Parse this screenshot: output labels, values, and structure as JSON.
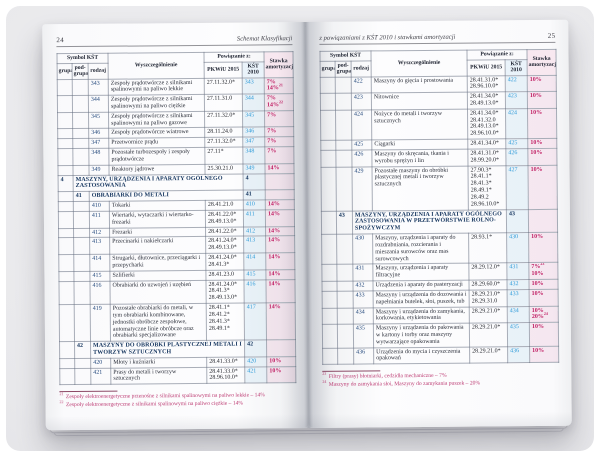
{
  "table_headers": {
    "symbol_kst": "Symbol KŚT",
    "grupa": "grupa",
    "podgrupa": "pod-grupa",
    "rodzaj": "rodzaj",
    "wyszczegolnienie": "Wyszczególnienie",
    "powiazanie": "Powiązanie z:",
    "pkwiu": "PKWiU 2015",
    "kst2010": "KŚT 2010",
    "stawka": "Stawka amortyzacji"
  },
  "colors": {
    "kst2010_blue": "#2e9bd8",
    "stawka_magenta": "#c01e63",
    "footnote_pink": "#bd3d74",
    "section_navy": "#16365f"
  },
  "pages": [
    {
      "page_number": "24",
      "running_head": "Schemat Klasyfikacji",
      "rows": [
        {
          "type": "item",
          "rodzaj": "343",
          "name": "Zespoły prądotwórcze z silnikami spalinowymi na paliwo lekkie",
          "pkwiu": [
            "27.11.32.0*"
          ],
          "kst2010": "343",
          "stawka": [
            {
              "t": "7%"
            },
            {
              "t": "14%",
              "s": "21"
            }
          ]
        },
        {
          "type": "item",
          "rodzaj": "344",
          "name": "Zespoły prądotwórcze z silnikami spalinowymi na paliwo ciężkie",
          "pkwiu": [
            "27.11.31.0"
          ],
          "kst2010": "344",
          "stawka": [
            {
              "t": "7%"
            },
            {
              "t": "14%",
              "s": "22"
            }
          ]
        },
        {
          "type": "item",
          "rodzaj": "345",
          "name": "Zespoły prądotwórcze z silnikami spalinowymi na paliwo gazowe",
          "pkwiu": [
            "27.11.32.0*"
          ],
          "kst2010": "345",
          "stawka": [
            {
              "t": "7%"
            }
          ]
        },
        {
          "type": "item",
          "rodzaj": "346",
          "name": "Zespoły prądotwórcze wiatrowe",
          "pkwiu": [
            "28.11.24.0"
          ],
          "kst2010": "346",
          "stawka": [
            {
              "t": "7%"
            }
          ]
        },
        {
          "type": "item",
          "rodzaj": "347",
          "name": "Przetwornice prądu",
          "pkwiu": [
            "27.11.32.0*"
          ],
          "kst2010": "347",
          "stawka": [
            {
              "t": "7%"
            }
          ]
        },
        {
          "type": "item",
          "rodzaj": "348",
          "name": "Pozostałe turbozespoły i zespoły prądotwórcze",
          "pkwiu": [
            "27.11*"
          ],
          "kst2010": "348",
          "stawka": [
            {
              "t": "7%"
            }
          ]
        },
        {
          "type": "item",
          "rodzaj": "349",
          "name": "Reaktory jądrowe",
          "pkwiu": [
            "25.30.21.0"
          ],
          "kst2010": "349",
          "stawka": [
            {
              "t": "14%"
            }
          ]
        },
        {
          "type": "section",
          "level": "grupa",
          "number": "4",
          "name": "MASZYNY, URZĄDZENIA I APARATY OGÓLNEGO ZASTOSOWANIA",
          "kst2010": "4"
        },
        {
          "type": "section",
          "level": "podgrupa",
          "number": "41",
          "name": "OBRABIARKI DO METALI",
          "kst2010": "41"
        },
        {
          "type": "item",
          "rodzaj": "410",
          "name": "Tokarki",
          "pkwiu": [
            "28.41.21.0"
          ],
          "kst2010": "410",
          "stawka": [
            {
              "t": "14%"
            }
          ]
        },
        {
          "type": "item",
          "rodzaj": "411",
          "name": "Wiertarki, wytaczarki i wiertarko-frezarki",
          "pkwiu": [
            "28.41.22.0*",
            "28.49.13.0*"
          ],
          "kst2010": "411",
          "stawka": [
            {
              "t": "14%"
            }
          ]
        },
        {
          "type": "item",
          "rodzaj": "412",
          "name": "Frezarki",
          "pkwiu": [
            "28.41.22.0*"
          ],
          "kst2010": "412",
          "stawka": [
            {
              "t": "14%"
            }
          ]
        },
        {
          "type": "item",
          "rodzaj": "413",
          "name": "Przecinarki i nakiełczarki",
          "pkwiu": [
            "28.41.24.0*",
            "28.49.13.0*"
          ],
          "kst2010": "413",
          "stawka": [
            {
              "t": "14%"
            }
          ]
        },
        {
          "type": "item",
          "rodzaj": "414",
          "name": "Strugarki, dłutownice, przeciągarki i przepycharki",
          "pkwiu": [
            "28.41.24.0*",
            "28.41.3*"
          ],
          "kst2010": "414",
          "stawka": [
            {
              "t": "14%"
            }
          ]
        },
        {
          "type": "item",
          "rodzaj": "415",
          "name": "Szlifierki",
          "pkwiu": [
            "28.41.23.0"
          ],
          "kst2010": "415",
          "stawka": [
            {
              "t": "14%"
            }
          ]
        },
        {
          "type": "item",
          "rodzaj": "416",
          "name": "Obrabiarki do uzwojeń i uzębień",
          "pkwiu": [
            "28.41.24.0*",
            "28.41.3*",
            "28.49.13.0*"
          ],
          "kst2010": "416",
          "stawka": [
            {
              "t": "14%"
            }
          ]
        },
        {
          "type": "item",
          "rodzaj": "419",
          "name": "Pozostałe obrabiarki do metali, w tym obrabiarki kombinowane, jednostki obróbcze zespołowe, automatyczne linie obróbcze oraz obrabiarki specjalizowane",
          "pkwiu": [
            "28.41.1*",
            "28.41.2*",
            "28.41.3*",
            "28.49.1*"
          ],
          "kst2010": "417",
          "stawka": [
            {
              "t": "14%"
            }
          ]
        },
        {
          "type": "section",
          "level": "podgrupa",
          "number": "42",
          "name": "MASZYNY DO OBRÓBKI PLASTYCZNEJ METALI I TWORZYW SZTUCZNYCH",
          "kst2010": "42"
        },
        {
          "type": "item",
          "rodzaj": "420",
          "name": "Młoty i kuźniarki",
          "pkwiu": [
            "28.41.33.0*"
          ],
          "kst2010": "420",
          "stawka": [
            {
              "t": "10%"
            }
          ]
        },
        {
          "type": "item",
          "rodzaj": "421",
          "name": "Prasy do metali i tworzyw sztucznych",
          "pkwiu": [
            "28.41.33.0*",
            "28.96.10.0*"
          ],
          "kst2010": "421",
          "stawka": [
            {
              "t": "10%"
            }
          ]
        }
      ],
      "footnotes": [
        {
          "s": "21",
          "t": "Zespoły elektroenergetyczne przenośne z silnikami spalinowymi na paliwo lekkie – 14%"
        },
        {
          "s": "22",
          "t": "Zespoły elektroenergetyczne z silnikami spalinowymi na paliwo ciężkie – 14%"
        }
      ]
    },
    {
      "page_number": "25",
      "running_head": "z powiązaniami z KŚT 2010 i stawkami amortyzacji",
      "rows": [
        {
          "type": "item",
          "rodzaj": "422",
          "name": "Maszyny do gięcia i prostowania",
          "pkwiu": [
            "28.41.31.0*",
            "28.96.10.0*"
          ],
          "kst2010": "422",
          "stawka": [
            {
              "t": "10%"
            }
          ]
        },
        {
          "type": "item",
          "rodzaj": "423",
          "name": "Nitownice",
          "pkwiu": [
            "28.41.34.0*",
            "28.49.13.0*"
          ],
          "kst2010": "423",
          "stawka": [
            {
              "t": "10%"
            }
          ]
        },
        {
          "type": "item",
          "rodzaj": "424",
          "name": "Nożyce do metali i tworzyw sztucznych",
          "pkwiu": [
            "28.41.34.0*",
            "28.41.32.0",
            "28.49.13.0*",
            "28.96.10.0*"
          ],
          "kst2010": "424",
          "stawka": [
            {
              "t": "10%"
            }
          ]
        },
        {
          "type": "item",
          "rodzaj": "425",
          "name": "Ciągarki",
          "pkwiu": [
            "28.41.34.0*"
          ],
          "kst2010": "425",
          "stawka": [
            {
              "t": "10%"
            }
          ]
        },
        {
          "type": "item",
          "rodzaj": "426",
          "name": "Maszyny do skręcania, tkania i wyrobu sprężyn i lin",
          "pkwiu": [
            "28.41.31.0*",
            "28.99.20.0*"
          ],
          "kst2010": "426",
          "stawka": [
            {
              "t": "10%"
            }
          ]
        },
        {
          "type": "item",
          "rodzaj": "429",
          "name": "Pozostałe maszyny do obróbki plastycznej metali i tworzyw sztucznych",
          "pkwiu": [
            "27.90.3*",
            "28.41.1*",
            "28.41.3*",
            "28.49.1*",
            "28.49.2",
            "28.96.10.0*"
          ],
          "kst2010": "427",
          "stawka": [
            {
              "t": "10%"
            }
          ]
        },
        {
          "type": "section",
          "level": "podgrupa",
          "number": "43",
          "name": "MASZYNY, URZĄDZENIA I APARATY OGÓLNEGO ZASTOSOWANIA W PRZETWÓRSTWIE ROLNO-SPOŻYWCZYM",
          "kst2010": "43"
        },
        {
          "type": "item",
          "rodzaj": "430",
          "name": "Maszyny, urządzenia i aparaty do rozdrabniania, rozcierania i mieszania surowców oraz mas surowcowych",
          "pkwiu": [
            "28.93.1*"
          ],
          "kst2010": "430",
          "stawka": [
            {
              "t": "10%"
            }
          ]
        },
        {
          "type": "item",
          "rodzaj": "431",
          "name": "Maszyny, urządzenia i aparaty filtracyjne",
          "pkwiu": [
            "28.29.12.0*"
          ],
          "kst2010": "431",
          "stawka": [
            {
              "t": "7%",
              "s": "23"
            },
            {
              "t": "10%"
            }
          ]
        },
        {
          "type": "item",
          "rodzaj": "432",
          "name": "Urządzenia i aparaty do pasteryzacji",
          "pkwiu": [
            "28.29.60.0*"
          ],
          "kst2010": "432",
          "stawka": [
            {
              "t": "10%"
            }
          ]
        },
        {
          "type": "item",
          "rodzaj": "433",
          "name": "Maszyny i urządzenia do dozowania i napełniania butelek, słoi, puszek, tub",
          "pkwiu": [
            "28.29.21.0*",
            "28.29.31.0"
          ],
          "kst2010": "433",
          "stawka": [
            {
              "t": "10%"
            }
          ]
        },
        {
          "type": "item",
          "rodzaj": "434",
          "name": "Maszyny i urządzenia do zamykania, korkowania, etykietowania",
          "pkwiu": [
            "28.29.21.0*"
          ],
          "kst2010": "434",
          "stawka": [
            {
              "t": "10%"
            },
            {
              "t": "20%",
              "s": "24"
            }
          ]
        },
        {
          "type": "item",
          "rodzaj": "435",
          "name": "Maszyny i urządzenia do pakowania w kartony i torby oraz maszyny wytwarzające opakowania",
          "pkwiu": [
            "28.29.21.0*"
          ],
          "kst2010": "435",
          "stawka": [
            {
              "t": "10%"
            }
          ]
        },
        {
          "type": "item",
          "rodzaj": "436",
          "name": "Urządzenia do mycia i czyszczenia opakowań",
          "pkwiu": [
            "28.29.21.0*"
          ],
          "kst2010": "436",
          "stawka": [
            {
              "t": "10%"
            }
          ]
        }
      ],
      "footnotes": [
        {
          "s": "23",
          "t": "Filtry (prasy) błotniarki, cedzidła mechaniczne – 7%"
        },
        {
          "s": "24",
          "t": "Maszyny do zamykania słoi, Maszyny do zamykania puszek – 20%"
        }
      ]
    }
  ]
}
